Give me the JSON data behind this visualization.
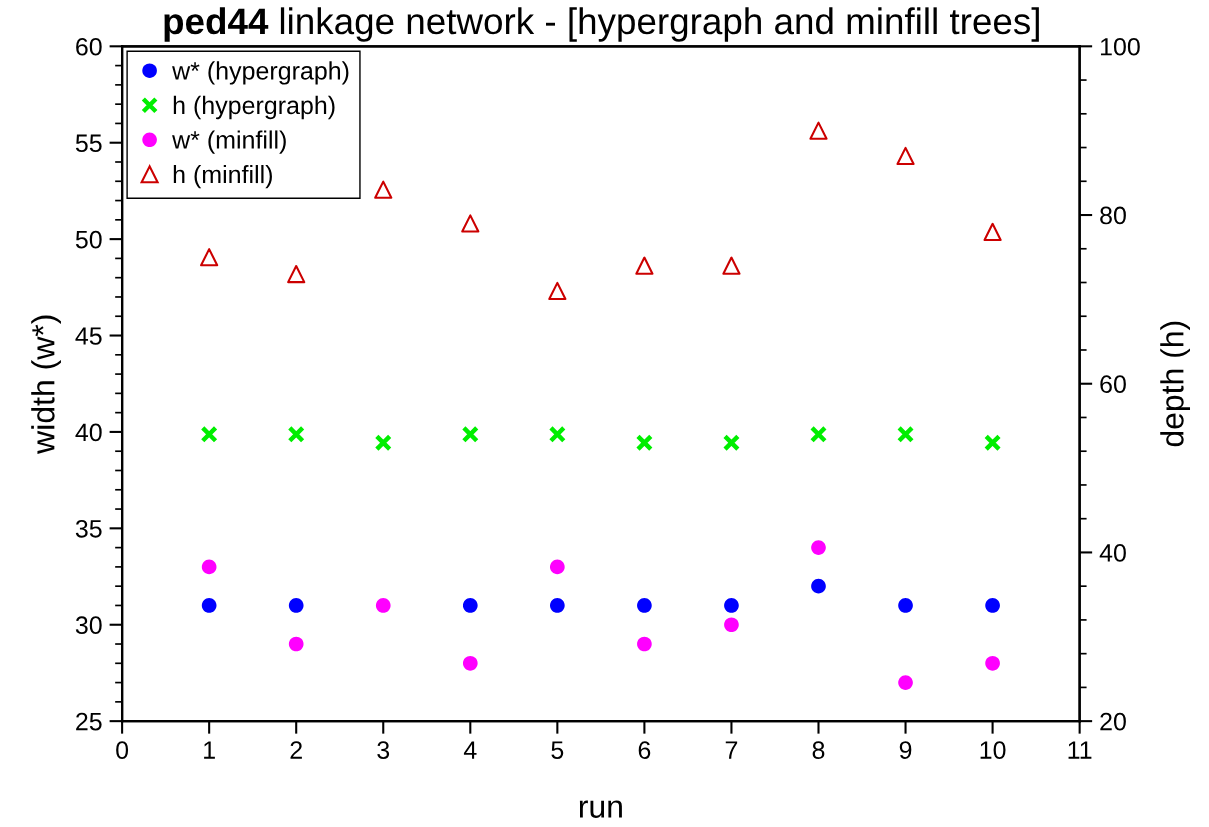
{
  "chart_data": {
    "type": "scatter",
    "title": "ped44 linkage network - [hypergraph and minfill trees]",
    "xlabel": "run",
    "ylabel": "width (w*)",
    "y2label": "depth (h)",
    "x": [
      1,
      2,
      3,
      4,
      5,
      6,
      7,
      8,
      9,
      10
    ],
    "xlim": [
      0,
      11
    ],
    "xticks": [
      0,
      1,
      2,
      3,
      4,
      5,
      6,
      7,
      8,
      9,
      10,
      11
    ],
    "ylim": [
      25,
      60
    ],
    "yticks": [
      25,
      {
        "value": 26,
        "label": null
      },
      {
        "value": 27,
        "label": null
      },
      {
        "value": 28,
        "label": null
      },
      {
        "value": 29,
        "label": null
      },
      30,
      {
        "value": 31,
        "label": null
      },
      {
        "value": 32,
        "label": null
      },
      {
        "value": 33,
        "label": null
      },
      {
        "value": 34,
        "label": null
      },
      35,
      {
        "value": 36,
        "label": null
      },
      {
        "value": 37,
        "label": null
      },
      {
        "value": 38,
        "label": null
      },
      {
        "value": 39,
        "label": null
      },
      40,
      {
        "value": 41,
        "label": null
      },
      {
        "value": 42,
        "label": null
      },
      {
        "value": 43,
        "label": null
      },
      {
        "value": 44,
        "label": null
      },
      45,
      {
        "value": 46,
        "label": null
      },
      {
        "value": 47,
        "label": null
      },
      {
        "value": 48,
        "label": null
      },
      {
        "value": 49,
        "label": null
      },
      50,
      {
        "value": 51,
        "label": null
      },
      {
        "value": 52,
        "label": null
      },
      {
        "value": 53,
        "label": null
      },
      {
        "value": 54,
        "label": null
      },
      55,
      {
        "value": 56,
        "label": null
      },
      {
        "value": 57,
        "label": null
      },
      {
        "value": 58,
        "label": null
      },
      {
        "value": 59,
        "label": null
      },
      60
    ],
    "y2lim": [
      20,
      100
    ],
    "y2ticks": [
      20,
      {
        "value": 24,
        "label": null
      },
      {
        "value": 28,
        "label": null
      },
      {
        "value": 32,
        "label": null
      },
      {
        "value": 36,
        "label": null
      },
      40,
      {
        "value": 44,
        "label": null
      },
      {
        "value": 48,
        "label": null
      },
      {
        "value": 52,
        "label": null
      },
      {
        "value": 56,
        "label": null
      },
      60,
      {
        "value": 64,
        "label": null
      },
      {
        "value": 68,
        "label": null
      },
      {
        "value": 72,
        "label": null
      },
      {
        "value": 76,
        "label": null
      },
      80,
      {
        "value": 84,
        "label": null
      },
      {
        "value": 88,
        "label": null
      },
      {
        "value": 92,
        "label": null
      },
      {
        "value": 96,
        "label": null
      },
      100
    ],
    "grid": false,
    "legend": "top left",
    "series": [
      {
        "name": "w* (hypergraph)",
        "color": "#0000ff",
        "marker": "circle",
        "values": [
          31,
          31,
          null,
          31,
          31,
          31,
          31,
          32,
          31,
          31
        ]
      },
      {
        "name": "h (hypergraph)",
        "color": "#00ee00",
        "marker": "cross",
        "axis": "y2",
        "values": [
          54,
          54,
          53,
          54,
          54,
          53,
          53,
          54,
          54,
          53
        ]
      },
      {
        "name": "w* (minfill)",
        "color": "#ff00ff",
        "marker": "circle",
        "values": [
          33,
          29,
          31,
          28,
          33,
          29,
          30,
          34,
          27,
          28
        ]
      },
      {
        "name": "h (minfill)",
        "color": "#cc0000",
        "marker": "triangle",
        "axis": "y2",
        "values": [
          75,
          73,
          83,
          79,
          71,
          74,
          74,
          90,
          87,
          78
        ]
      }
    ]
  }
}
